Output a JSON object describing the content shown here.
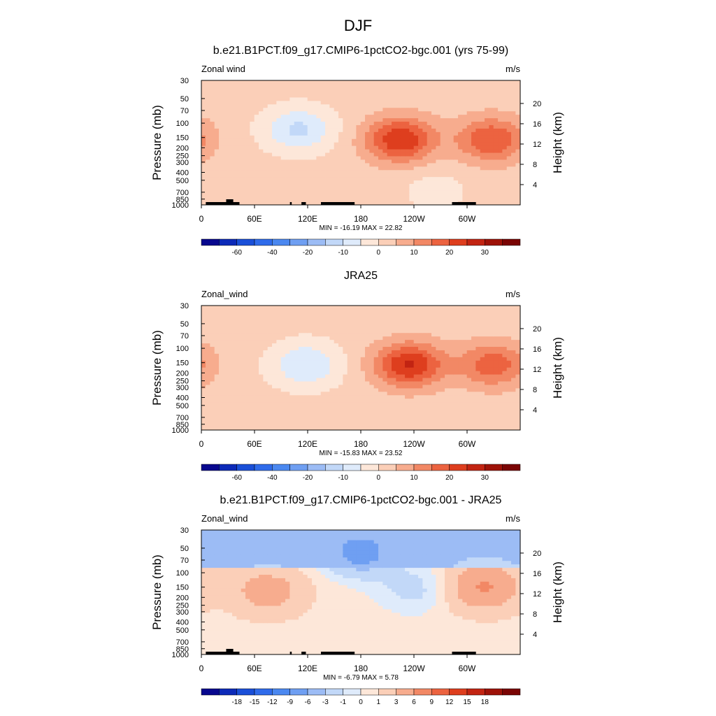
{
  "figure": {
    "title": "DJF"
  },
  "chart_data": [
    {
      "type": "heatmap",
      "title": "b.e21.B1PCT.f09_g17.CMIP6-1pctCO2-bgc.001 (yrs 75-99)",
      "left_string": "Zonal wind",
      "right_string": "m/s",
      "ylabel": "Pressure (mb)",
      "ylabel_right": "Height (km)",
      "x_ticks": [
        "0",
        "60E",
        "120E",
        "180",
        "120W",
        "60W"
      ],
      "y_ticks": [
        "30",
        "50",
        "70",
        "100",
        "150",
        "200",
        "250",
        "300",
        "400",
        "500",
        "700",
        "850",
        "1000"
      ],
      "height_ticks": [
        "20",
        "16",
        "12",
        "8",
        "4"
      ],
      "stats": "MIN = -16.19  MAX =  22.82",
      "min": -16.19,
      "max": 22.82,
      "colorbar": {
        "levels": [
          -70,
          -60,
          -50,
          -40,
          -30,
          -20,
          -15,
          -10,
          -5,
          0,
          5,
          10,
          15,
          20,
          25,
          30,
          35
        ],
        "labels": [
          "-60",
          "-40",
          "-20",
          "-10",
          "0",
          "10",
          "20",
          "30"
        ],
        "colors": [
          "#08088e",
          "#0c2ab8",
          "#1a4fd8",
          "#2f6bea",
          "#4b88f0",
          "#6f9ff2",
          "#9cbcf5",
          "#c2d8f8",
          "#dfebfb",
          "#fde7d9",
          "#fbcfb8",
          "#f7ac8e",
          "#f28865",
          "#ec6340",
          "#de3e1e",
          "#c22412",
          "#9e1208",
          "#7a0504"
        ]
      },
      "features": [
        {
          "lon": 110,
          "p": 120,
          "value": -13
        },
        {
          "lon": 225,
          "p": 160,
          "value": 22.8
        },
        {
          "lon": 328,
          "p": 160,
          "value": 18
        },
        {
          "lon": 265,
          "p": 650,
          "value": -4
        }
      ]
    },
    {
      "type": "heatmap",
      "title": "JRA25",
      "left_string": "Zonal_wind",
      "right_string": "m/s",
      "ylabel": "Pressure (mb)",
      "ylabel_right": "Height (km)",
      "x_ticks": [
        "0",
        "60E",
        "120E",
        "180",
        "120W",
        "60W"
      ],
      "y_ticks": [
        "30",
        "50",
        "70",
        "100",
        "150",
        "200",
        "250",
        "300",
        "400",
        "500",
        "700",
        "850",
        "1000"
      ],
      "height_ticks": [
        "20",
        "16",
        "12",
        "8",
        "4"
      ],
      "stats": "MIN = -15.83  MAX =  23.52",
      "min": -15.83,
      "max": 23.52,
      "colorbar": {
        "levels": [
          -70,
          -60,
          -50,
          -40,
          -30,
          -20,
          -15,
          -10,
          -5,
          0,
          5,
          10,
          15,
          20,
          25,
          30,
          35
        ],
        "labels": [
          "-60",
          "-40",
          "-20",
          "-10",
          "0",
          "10",
          "20",
          "30"
        ],
        "colors": [
          "#08088e",
          "#0c2ab8",
          "#1a4fd8",
          "#2f6bea",
          "#4b88f0",
          "#6f9ff2",
          "#9cbcf5",
          "#c2d8f8",
          "#dfebfb",
          "#fde7d9",
          "#fbcfb8",
          "#f7ac8e",
          "#f28865",
          "#ec6340",
          "#de3e1e",
          "#c22412",
          "#9e1208",
          "#7a0504"
        ]
      },
      "features": [
        {
          "lon": 118,
          "p": 160,
          "value": -12
        },
        {
          "lon": 235,
          "p": 160,
          "value": 23.5
        },
        {
          "lon": 330,
          "p": 160,
          "value": 16
        }
      ]
    },
    {
      "type": "heatmap",
      "title": "b.e21.B1PCT.f09_g17.CMIP6-1pctCO2-bgc.001 - JRA25",
      "left_string": "Zonal_wind",
      "right_string": "m/s",
      "ylabel": "Pressure (mb)",
      "ylabel_right": "Height (km)",
      "x_ticks": [
        "0",
        "60E",
        "120E",
        "180",
        "120W",
        "60W"
      ],
      "y_ticks": [
        "30",
        "50",
        "70",
        "100",
        "150",
        "200",
        "250",
        "300",
        "400",
        "500",
        "700",
        "850",
        "1000"
      ],
      "height_ticks": [
        "20",
        "16",
        "12",
        "8",
        "4"
      ],
      "stats": "MIN =  -6.79  MAX =   5.78",
      "min": -6.79,
      "max": 5.78,
      "colorbar": {
        "levels": [
          -21,
          -18,
          -15,
          -12,
          -9,
          -6,
          -3,
          -1,
          0,
          1,
          3,
          6,
          9,
          12,
          15,
          18,
          21
        ],
        "labels": [
          "-18",
          "-15",
          "-12",
          "-9",
          "-6",
          "-3",
          "-1",
          "0",
          "1",
          "3",
          "6",
          "9",
          "12",
          "15",
          "18"
        ],
        "colors": [
          "#08088e",
          "#0c2ab8",
          "#1a4fd8",
          "#2f6bea",
          "#4b88f0",
          "#6f9ff2",
          "#9cbcf5",
          "#c2d8f8",
          "#dfebfb",
          "#fde7d9",
          "#fbcfb8",
          "#f7ac8e",
          "#f28865",
          "#ec6340",
          "#de3e1e",
          "#c22412",
          "#9e1208",
          "#7a0504"
        ]
      },
      "features": [
        {
          "lon": 180,
          "p": 55,
          "value": -6.79
        },
        {
          "lon": 75,
          "p": 170,
          "value": 4
        },
        {
          "lon": 320,
          "p": 150,
          "value": 5.78
        },
        {
          "lon": 240,
          "p": 160,
          "value": -2
        }
      ]
    }
  ]
}
